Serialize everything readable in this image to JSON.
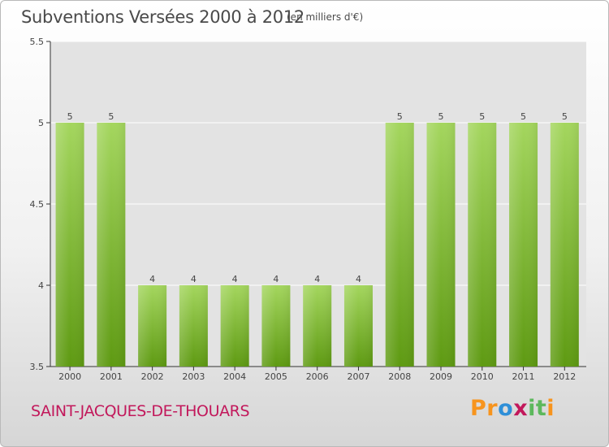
{
  "header": {
    "title": "Subventions Versées 2000 à 2012",
    "unit": "(en milliers d'€)"
  },
  "footer": {
    "commune": "SAINT-JACQUES-DE-THOUARS",
    "logo_letters": [
      "P",
      "r",
      "o",
      "x",
      "i",
      "t",
      "i"
    ]
  },
  "colors": {
    "bar_top": "#a4d65e",
    "bar_bottom": "#5e9a12",
    "plot_background": "#e3e3e3",
    "title": "#4a4a4a",
    "commune": "#c2185b"
  },
  "chart_data": {
    "type": "bar",
    "title": "Subventions Versées 2000 à 2012",
    "subtitle": "(en milliers d'€)",
    "categories": [
      "2000",
      "2001",
      "2002",
      "2003",
      "2004",
      "2005",
      "2006",
      "2007",
      "2008",
      "2009",
      "2010",
      "2011",
      "2012"
    ],
    "values": [
      5,
      5,
      4,
      4,
      4,
      4,
      4,
      4,
      5,
      5,
      5,
      5,
      5
    ],
    "data_labels": [
      "5",
      "5",
      "4",
      "4",
      "4",
      "4",
      "4",
      "4",
      "5",
      "5",
      "5",
      "5",
      "5"
    ],
    "y_ticks": [
      "3.5",
      "4",
      "4.5",
      "5",
      "5.5"
    ],
    "ylim": [
      3.5,
      5.5
    ],
    "xlabel": "",
    "ylabel": "",
    "grid": true,
    "legend": "none"
  }
}
